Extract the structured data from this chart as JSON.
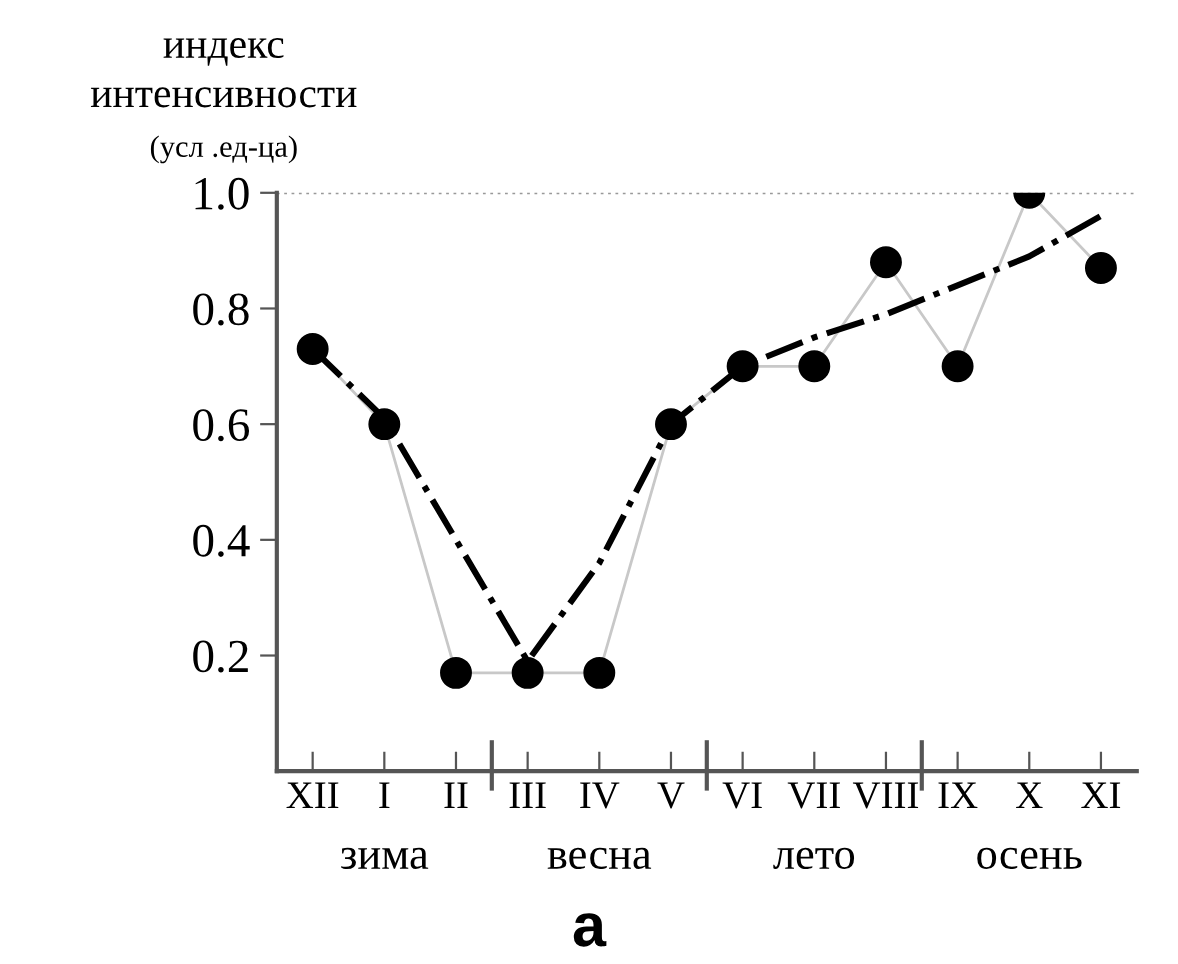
{
  "chart_data": {
    "type": "line",
    "ylabel": "индекс интенсивности",
    "subtitle": "(усл .ед-ца)",
    "categories": [
      "XII",
      "I",
      "II",
      "III",
      "IV",
      "V",
      "VI",
      "VII",
      "VIII",
      "IX",
      "X",
      "XI"
    ],
    "series": [
      {
        "color": "#c8c8c8",
        "marker": "circle",
        "values": [
          0.73,
          0.6,
          0.17,
          0.17,
          0.17,
          0.6,
          0.7,
          0.7,
          0.88,
          0.7,
          1.0,
          0.87
        ]
      },
      {
        "color": "#000000",
        "line_style": "dashdot",
        "marker": "none",
        "values": [
          0.73,
          0.61,
          0.4,
          0.19,
          0.36,
          0.6,
          0.7,
          0.75,
          0.79,
          0.84,
          0.89,
          0.96
        ]
      }
    ],
    "ylim": [
      0,
      1.0
    ],
    "yticks": [
      0.2,
      0.4,
      0.6,
      0.8,
      {
        "value": 1.0,
        "label": "1.0"
      }
    ],
    "ref_lines": [
      {
        "axis": "y",
        "value": 1.0,
        "line_style": "dotted",
        "color": "#999999"
      }
    ],
    "annotations": [
      "зима",
      "весна",
      "лето",
      "осень",
      "а"
    ]
  }
}
